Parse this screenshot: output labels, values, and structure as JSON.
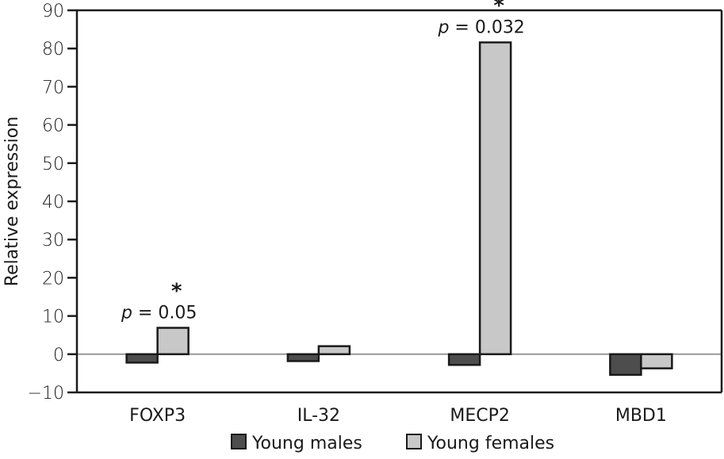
{
  "chart_data": {
    "type": "bar",
    "title": "",
    "xlabel": "",
    "ylabel": "Relative expression",
    "ylim": [
      -10,
      90
    ],
    "yticks": [
      90,
      80,
      70,
      60,
      50,
      40,
      30,
      20,
      10,
      0,
      -10
    ],
    "ytick_labels": [
      "90",
      "80",
      "70",
      "60",
      "50",
      "40",
      "30",
      "20",
      "10",
      "0",
      "−10"
    ],
    "categories": [
      "FOXP3",
      "IL-32",
      "MECP2",
      "MBD1"
    ],
    "series": [
      {
        "name": "Young males",
        "color": "#4d4d4d",
        "values": [
          -2.2,
          -1.8,
          -2.8,
          -5.4
        ]
      },
      {
        "name": "Young females",
        "color": "#c8c8c8",
        "values": [
          6.9,
          2.1,
          81.6,
          -3.7
        ]
      }
    ],
    "annotations": [
      {
        "category": "FOXP3",
        "star": "*",
        "p_symbol": "p",
        "p_text": " = 0.05"
      },
      {
        "category": "MECP2",
        "star": "*",
        "p_symbol": "p",
        "p_text": " = 0.032"
      }
    ],
    "grid": false,
    "zero_line_color": "#999999",
    "legend_position": "bottom-center"
  }
}
